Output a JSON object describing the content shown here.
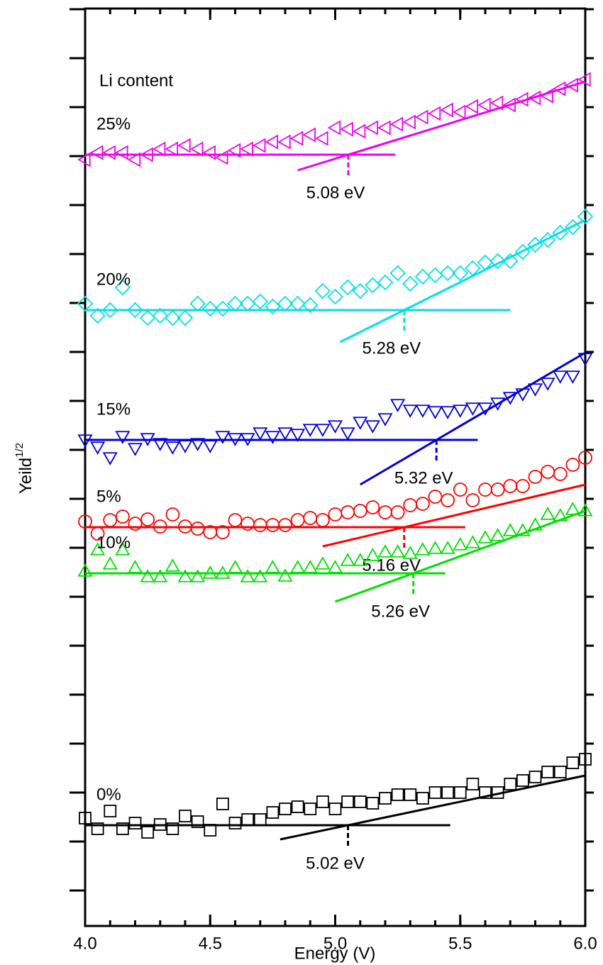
{
  "chart_data": {
    "type": "scatter",
    "x_label": "Energy (V)",
    "y_label": "Yeild",
    "y_label_sup": "1/2",
    "annotation": "Li content",
    "xlim": [
      4.0,
      6.0
    ],
    "xticks": [
      {
        "value": 4.0,
        "label": "4.0"
      },
      {
        "value": 4.5,
        "label": "4.5"
      },
      {
        "value": 5.0,
        "label": "5.0"
      },
      {
        "value": 5.5,
        "label": "5.5"
      },
      {
        "value": 6.0,
        "label": "6.0"
      }
    ],
    "x_minor_step": 0.1,
    "ylim": [
      -50,
      1243
    ],
    "yticks": [
      0,
      69,
      138,
      207,
      276,
      345,
      414,
      483,
      552,
      621,
      690,
      759,
      828,
      897,
      966,
      1035,
      1104,
      1173,
      1242
    ],
    "ytick_labels": false,
    "x": [
      4.0,
      4.05,
      4.1,
      4.15,
      4.2,
      4.25,
      4.3,
      4.35,
      4.4,
      4.45,
      4.5,
      4.55,
      4.6,
      4.65,
      4.7,
      4.75,
      4.8,
      4.85,
      4.9,
      4.95,
      5.0,
      5.05,
      5.1,
      5.15,
      5.2,
      5.25,
      5.3,
      5.35,
      5.4,
      5.45,
      5.5,
      5.55,
      5.6,
      5.65,
      5.7,
      5.75,
      5.8,
      5.85,
      5.9,
      5.95,
      6.0
    ],
    "series": [
      {
        "name": "0%",
        "color": "#000000",
        "marker": "square",
        "values": [
          102,
          87,
          112,
          87,
          95,
          82,
          93,
          87,
          105,
          97,
          85,
          122,
          95,
          100,
          100,
          110,
          115,
          118,
          115,
          125,
          115,
          125,
          125,
          123,
          130,
          135,
          135,
          130,
          138,
          138,
          138,
          150,
          138,
          138,
          150,
          155,
          160,
          167,
          167,
          180,
          185
        ],
        "baseline": {
          "x": [
            4.0,
            5.46
          ],
          "y": 92
        },
        "fit": {
          "x": [
            4.78,
            6.0
          ],
          "y": [
            72,
            162
          ]
        },
        "threshold_label": "5.02 eV"
      },
      {
        "name": "5%",
        "color": "#ff0000",
        "marker": "circle",
        "values": [
          520,
          503,
          522,
          527,
          517,
          523,
          513,
          530,
          513,
          510,
          505,
          505,
          522,
          517,
          515,
          515,
          515,
          522,
          525,
          522,
          530,
          533,
          535,
          540,
          533,
          533,
          543,
          545,
          555,
          550,
          565,
          550,
          565,
          565,
          570,
          570,
          583,
          590,
          587,
          600,
          610
        ],
        "baseline": {
          "x": [
            4.0,
            5.52
          ],
          "y": 512
        },
        "fit": {
          "x": [
            4.95,
            6.0
          ],
          "y": [
            485,
            572
          ]
        },
        "threshold_label": "5.16 eV"
      },
      {
        "name": "10%",
        "color": "#00e000",
        "marker": "triangle-up",
        "values": [
          450,
          480,
          460,
          480,
          455,
          442,
          442,
          457,
          442,
          442,
          447,
          447,
          455,
          442,
          442,
          455,
          443,
          455,
          455,
          460,
          455,
          465,
          465,
          472,
          477,
          477,
          475,
          480,
          482,
          482,
          487,
          490,
          497,
          500,
          507,
          507,
          515,
          530,
          528,
          537,
          535
        ],
        "baseline": {
          "x": [
            4.0,
            5.44
          ],
          "y": 447
        },
        "fit": {
          "x": [
            5.0,
            6.0
          ],
          "y": [
            407,
            535
          ]
        },
        "threshold_label": "5.26 eV"
      },
      {
        "name": "15%",
        "color": "#0000dd",
        "marker": "triangle-down",
        "values": [
          635,
          625,
          610,
          640,
          623,
          637,
          630,
          625,
          627,
          630,
          627,
          640,
          637,
          637,
          645,
          640,
          645,
          643,
          650,
          650,
          655,
          645,
          660,
          655,
          665,
          685,
          677,
          677,
          675,
          675,
          677,
          680,
          680,
          687,
          695,
          700,
          707,
          715,
          725,
          725,
          750
        ],
        "baseline": {
          "x": [
            4.0,
            5.57
          ],
          "y": 635
        },
        "fit": {
          "x": [
            5.1,
            6.0
          ],
          "y": [
            572,
            758
          ]
        },
        "threshold_label": "5.32 eV"
      },
      {
        "name": "20%",
        "color": "#00e0e8",
        "marker": "diamond",
        "values": [
          827,
          810,
          818,
          850,
          818,
          807,
          810,
          807,
          807,
          827,
          820,
          820,
          827,
          827,
          830,
          823,
          827,
          827,
          825,
          845,
          837,
          850,
          845,
          853,
          857,
          870,
          855,
          865,
          867,
          870,
          870,
          877,
          885,
          887,
          887,
          900,
          910,
          917,
          927,
          935,
          950
        ],
        "baseline": {
          "x": [
            4.0,
            5.7
          ],
          "y": 818
        },
        "fit": {
          "x": [
            5.02,
            6.0
          ],
          "y": [
            773,
            945
          ]
        },
        "threshold_label": "5.28 eV"
      },
      {
        "name": "25%",
        "color": "#ee00ee",
        "marker": "triangle-left",
        "values": [
          1030,
          1040,
          1040,
          1040,
          1030,
          1037,
          1045,
          1045,
          1050,
          1045,
          1040,
          1033,
          1043,
          1045,
          1050,
          1055,
          1055,
          1060,
          1065,
          1060,
          1075,
          1073,
          1070,
          1075,
          1075,
          1080,
          1083,
          1090,
          1095,
          1100,
          1097,
          1105,
          1107,
          1110,
          1107,
          1115,
          1117,
          1120,
          1130,
          1135,
          1143
        ],
        "baseline": {
          "x": [
            4.0,
            5.24
          ],
          "y": 1037
        },
        "fit": {
          "x": [
            4.85,
            6.0
          ],
          "y": [
            1015,
            1140
          ]
        },
        "threshold_label": "5.08 eV"
      }
    ]
  }
}
